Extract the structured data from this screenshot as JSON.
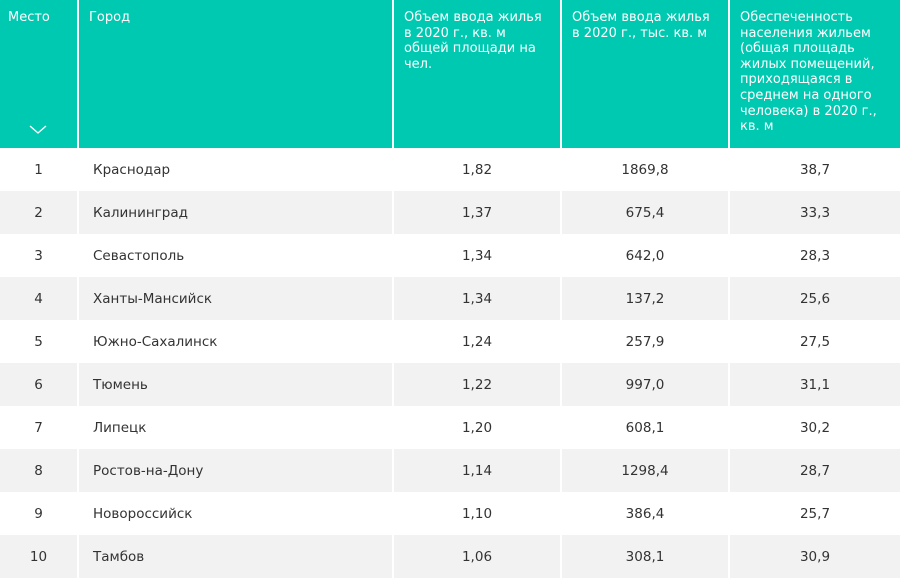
{
  "table": {
    "columns": [
      "Место",
      "Город",
      "Объем ввода жилья в 2020 г., кв. м общей площади на чел.",
      "Объем ввода жилья в 2020 г., тыс. кв. м",
      "Обеспеченность населения жильем (общая площадь жилых помещений, приходящаяся в среднем на одного человека) в 2020 г., кв. м"
    ],
    "sort_icon": "chevron-down-icon",
    "header_color": "#00c9b1",
    "rows": [
      {
        "place": "1",
        "city": "Краснодар",
        "per_capita": "1,82",
        "total": "1869,8",
        "provision": "38,7"
      },
      {
        "place": "2",
        "city": "Калининград",
        "per_capita": "1,37",
        "total": "675,4",
        "provision": "33,3"
      },
      {
        "place": "3",
        "city": "Севастополь",
        "per_capita": "1,34",
        "total": "642,0",
        "provision": "28,3"
      },
      {
        "place": "4",
        "city": "Ханты-Мансийск",
        "per_capita": "1,34",
        "total": "137,2",
        "provision": "25,6"
      },
      {
        "place": "5",
        "city": "Южно-Сахалинск",
        "per_capita": "1,24",
        "total": "257,9",
        "provision": "27,5"
      },
      {
        "place": "6",
        "city": "Тюмень",
        "per_capita": "1,22",
        "total": "997,0",
        "provision": "31,1"
      },
      {
        "place": "7",
        "city": "Липецк",
        "per_capita": "1,20",
        "total": "608,1",
        "provision": "30,2"
      },
      {
        "place": "8",
        "city": "Ростов-на-Дону",
        "per_capita": "1,14",
        "total": "1298,4",
        "provision": "28,7"
      },
      {
        "place": "9",
        "city": "Новороссийск",
        "per_capita": "1,10",
        "total": "386,4",
        "provision": "25,7"
      },
      {
        "place": "10",
        "city": "Тамбов",
        "per_capita": "1,06",
        "total": "308,1",
        "provision": "30,9"
      }
    ]
  }
}
